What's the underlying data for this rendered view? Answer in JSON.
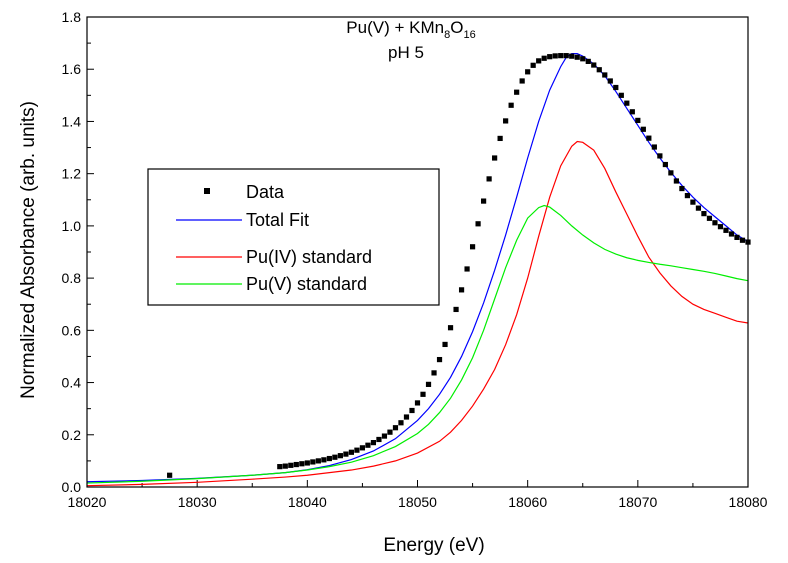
{
  "chart_data": {
    "type": "line",
    "title_main": "Pu(V) + KMn",
    "title_sub1": "8",
    "title_mid": "O",
    "title_sub2": "16",
    "title_line2": "pH 5",
    "xlabel": "Energy (eV)",
    "ylabel": "Normalized Absorbance (arb. units)",
    "xlim": [
      18020,
      18080
    ],
    "ylim": [
      0.0,
      1.8
    ],
    "x_ticks": [
      18020,
      18030,
      18040,
      18050,
      18060,
      18070,
      18080
    ],
    "x_tick_labels": [
      "18020",
      "18030",
      "18040",
      "18050",
      "18060",
      "18070",
      "18080"
    ],
    "y_ticks": [
      0.0,
      0.2,
      0.4,
      0.6,
      0.8,
      1.0,
      1.2,
      1.4,
      1.6,
      1.8
    ],
    "y_tick_labels": [
      "0.0",
      "0.2",
      "0.4",
      "0.6",
      "0.8",
      "1.0",
      "1.2",
      "1.4",
      "1.6",
      "1.8"
    ],
    "grid": false,
    "legend_position": "left-center",
    "series": [
      {
        "name": "Data",
        "kind": "scatter",
        "color": "#000000",
        "points": [
          [
            18027.5,
            0.045
          ],
          [
            18037.5,
            0.078
          ],
          [
            18038.0,
            0.08
          ],
          [
            18038.5,
            0.083
          ],
          [
            18039.0,
            0.086
          ],
          [
            18039.5,
            0.089
          ],
          [
            18040.0,
            0.092
          ],
          [
            18040.5,
            0.096
          ],
          [
            18041.0,
            0.1
          ],
          [
            18041.5,
            0.104
          ],
          [
            18042.0,
            0.109
          ],
          [
            18042.5,
            0.114
          ],
          [
            18043.0,
            0.12
          ],
          [
            18043.5,
            0.126
          ],
          [
            18044.0,
            0.133
          ],
          [
            18044.5,
            0.141
          ],
          [
            18045.0,
            0.15
          ],
          [
            18045.5,
            0.16
          ],
          [
            18046.0,
            0.17
          ],
          [
            18046.5,
            0.182
          ],
          [
            18047.0,
            0.195
          ],
          [
            18047.5,
            0.21
          ],
          [
            18048.0,
            0.227
          ],
          [
            18048.5,
            0.246
          ],
          [
            18049.0,
            0.268
          ],
          [
            18049.5,
            0.293
          ],
          [
            18050.0,
            0.322
          ],
          [
            18050.5,
            0.355
          ],
          [
            18051.0,
            0.393
          ],
          [
            18051.5,
            0.437
          ],
          [
            18052.0,
            0.488
          ],
          [
            18052.5,
            0.546
          ],
          [
            18053.0,
            0.61
          ],
          [
            18053.5,
            0.68
          ],
          [
            18054.0,
            0.755
          ],
          [
            18054.5,
            0.835
          ],
          [
            18055.0,
            0.92
          ],
          [
            18055.5,
            1.008
          ],
          [
            18056.0,
            1.095
          ],
          [
            18056.5,
            1.18
          ],
          [
            18057.0,
            1.26
          ],
          [
            18057.5,
            1.335
          ],
          [
            18058.0,
            1.402
          ],
          [
            18058.5,
            1.462
          ],
          [
            18059.0,
            1.512
          ],
          [
            18059.5,
            1.555
          ],
          [
            18060.0,
            1.59
          ],
          [
            18060.5,
            1.615
          ],
          [
            18061.0,
            1.632
          ],
          [
            18061.5,
            1.642
          ],
          [
            18062.0,
            1.648
          ],
          [
            18062.5,
            1.651
          ],
          [
            18063.0,
            1.652
          ],
          [
            18063.5,
            1.652
          ],
          [
            18064.0,
            1.65
          ],
          [
            18064.5,
            1.646
          ],
          [
            18065.0,
            1.64
          ],
          [
            18065.5,
            1.63
          ],
          [
            18066.0,
            1.616
          ],
          [
            18066.5,
            1.598
          ],
          [
            18067.0,
            1.578
          ],
          [
            18067.5,
            1.555
          ],
          [
            18068.0,
            1.53
          ],
          [
            18068.5,
            1.5
          ],
          [
            18069.0,
            1.47
          ],
          [
            18069.5,
            1.437
          ],
          [
            18070.0,
            1.404
          ],
          [
            18070.5,
            1.37
          ],
          [
            18071.0,
            1.336
          ],
          [
            18071.5,
            1.302
          ],
          [
            18072.0,
            1.268
          ],
          [
            18072.5,
            1.235
          ],
          [
            18073.0,
            1.203
          ],
          [
            18073.5,
            1.172
          ],
          [
            18074.0,
            1.143
          ],
          [
            18074.5,
            1.116
          ],
          [
            18075.0,
            1.091
          ],
          [
            18075.5,
            1.068
          ],
          [
            18076.0,
            1.047
          ],
          [
            18076.5,
            1.029
          ],
          [
            18077.0,
            1.012
          ],
          [
            18077.5,
            0.997
          ],
          [
            18078.0,
            0.983
          ],
          [
            18078.5,
            0.969
          ],
          [
            18079.0,
            0.956
          ],
          [
            18079.5,
            0.945
          ],
          [
            18080.0,
            0.938
          ]
        ]
      },
      {
        "name": "Total Fit",
        "kind": "line",
        "color": "#0000ff",
        "points": [
          [
            18020,
            0.02
          ],
          [
            18025,
            0.025
          ],
          [
            18030,
            0.033
          ],
          [
            18035,
            0.045
          ],
          [
            18038,
            0.055
          ],
          [
            18040,
            0.066
          ],
          [
            18042,
            0.082
          ],
          [
            18044,
            0.105
          ],
          [
            18046,
            0.138
          ],
          [
            18048,
            0.185
          ],
          [
            18050,
            0.255
          ],
          [
            18051,
            0.3
          ],
          [
            18052,
            0.355
          ],
          [
            18053,
            0.42
          ],
          [
            18054,
            0.5
          ],
          [
            18055,
            0.595
          ],
          [
            18056,
            0.705
          ],
          [
            18057,
            0.83
          ],
          [
            18058,
            0.965
          ],
          [
            18059,
            1.11
          ],
          [
            18060,
            1.26
          ],
          [
            18061,
            1.4
          ],
          [
            18062,
            1.52
          ],
          [
            18063,
            1.61
          ],
          [
            18063.5,
            1.645
          ],
          [
            18064,
            1.66
          ],
          [
            18064.5,
            1.66
          ],
          [
            18065,
            1.65
          ],
          [
            18066,
            1.62
          ],
          [
            18067,
            1.575
          ],
          [
            18068,
            1.515
          ],
          [
            18069,
            1.45
          ],
          [
            18070,
            1.385
          ],
          [
            18071,
            1.32
          ],
          [
            18072,
            1.26
          ],
          [
            18073,
            1.205
          ],
          [
            18074,
            1.155
          ],
          [
            18075,
            1.11
          ],
          [
            18076,
            1.07
          ],
          [
            18077,
            1.035
          ],
          [
            18078,
            1.0
          ],
          [
            18079,
            0.965
          ],
          [
            18080,
            0.94
          ]
        ]
      },
      {
        "name": "Pu(IV) standard",
        "kind": "line",
        "color": "#ff0000",
        "points": [
          [
            18020,
            0.005
          ],
          [
            18025,
            0.01
          ],
          [
            18030,
            0.018
          ],
          [
            18035,
            0.03
          ],
          [
            18038,
            0.038
          ],
          [
            18040,
            0.045
          ],
          [
            18042,
            0.055
          ],
          [
            18044,
            0.065
          ],
          [
            18046,
            0.08
          ],
          [
            18048,
            0.1
          ],
          [
            18050,
            0.13
          ],
          [
            18052,
            0.175
          ],
          [
            18053,
            0.21
          ],
          [
            18054,
            0.255
          ],
          [
            18055,
            0.31
          ],
          [
            18056,
            0.375
          ],
          [
            18057,
            0.45
          ],
          [
            18058,
            0.545
          ],
          [
            18059,
            0.66
          ],
          [
            18060,
            0.8
          ],
          [
            18061,
            0.96
          ],
          [
            18062,
            1.11
          ],
          [
            18063,
            1.23
          ],
          [
            18064,
            1.305
          ],
          [
            18064.5,
            1.323
          ],
          [
            18065,
            1.32
          ],
          [
            18066,
            1.29
          ],
          [
            18067,
            1.22
          ],
          [
            18068,
            1.13
          ],
          [
            18069,
            1.045
          ],
          [
            18070,
            0.96
          ],
          [
            18071,
            0.88
          ],
          [
            18072,
            0.82
          ],
          [
            18073,
            0.77
          ],
          [
            18074,
            0.73
          ],
          [
            18075,
            0.7
          ],
          [
            18076,
            0.68
          ],
          [
            18077,
            0.665
          ],
          [
            18078,
            0.65
          ],
          [
            18079,
            0.635
          ],
          [
            18080,
            0.628
          ]
        ]
      },
      {
        "name": "Pu(V) standard",
        "kind": "line",
        "color": "#00ee00",
        "points": [
          [
            18020,
            0.015
          ],
          [
            18025,
            0.022
          ],
          [
            18030,
            0.032
          ],
          [
            18035,
            0.045
          ],
          [
            18038,
            0.055
          ],
          [
            18040,
            0.065
          ],
          [
            18042,
            0.078
          ],
          [
            18044,
            0.095
          ],
          [
            18046,
            0.12
          ],
          [
            18048,
            0.155
          ],
          [
            18050,
            0.205
          ],
          [
            18051,
            0.24
          ],
          [
            18052,
            0.285
          ],
          [
            18053,
            0.34
          ],
          [
            18054,
            0.41
          ],
          [
            18055,
            0.495
          ],
          [
            18056,
            0.6
          ],
          [
            18057,
            0.72
          ],
          [
            18058,
            0.84
          ],
          [
            18059,
            0.945
          ],
          [
            18060,
            1.03
          ],
          [
            18061,
            1.07
          ],
          [
            18061.5,
            1.078
          ],
          [
            18062,
            1.072
          ],
          [
            18063,
            1.04
          ],
          [
            18064,
            1.0
          ],
          [
            18065,
            0.965
          ],
          [
            18066,
            0.935
          ],
          [
            18067,
            0.91
          ],
          [
            18068,
            0.892
          ],
          [
            18069,
            0.878
          ],
          [
            18070,
            0.868
          ],
          [
            18071,
            0.86
          ],
          [
            18072,
            0.853
          ],
          [
            18073,
            0.847
          ],
          [
            18074,
            0.84
          ],
          [
            18075,
            0.833
          ],
          [
            18076,
            0.826
          ],
          [
            18077,
            0.818
          ],
          [
            18078,
            0.808
          ],
          [
            18079,
            0.798
          ],
          [
            18080,
            0.79
          ]
        ]
      }
    ]
  }
}
